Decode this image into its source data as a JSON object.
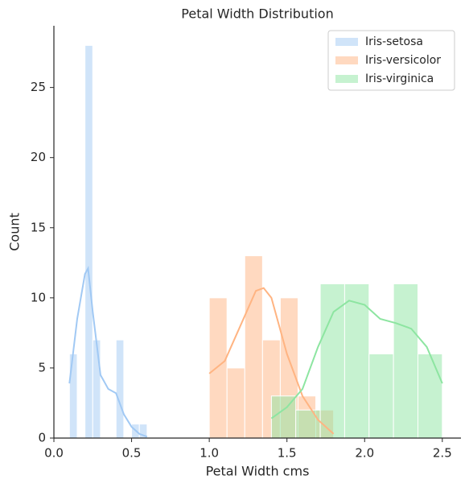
{
  "chart_data": {
    "type": "histogram",
    "title": "Petal Width Distribution",
    "x_label": "Petal Width cms",
    "y_label": "Count",
    "xlim": [
      0,
      2.62
    ],
    "ylim": [
      0,
      29.4
    ],
    "xticks": [
      {
        "value": 0,
        "label": "0.0"
      },
      0.5,
      {
        "value": 1,
        "label": "1.0"
      },
      1.5,
      {
        "value": 2,
        "label": "2.0"
      },
      2.5
    ],
    "yticks": [
      0,
      5,
      10,
      15,
      20,
      25
    ],
    "legend": "upper right",
    "grid": false,
    "series": [
      {
        "name": "Iris-setosa",
        "color": "#a1c9f4",
        "bins": [
          0.1,
          0.15,
          0.2,
          0.25,
          0.3,
          0.35,
          0.4,
          0.45,
          0.5,
          0.55,
          0.6
        ],
        "values": [
          6,
          0,
          28,
          7,
          0,
          0,
          7,
          0,
          1,
          1
        ],
        "kde": {
          "x": [
            0.1,
            0.15,
            0.2,
            0.22,
            0.25,
            0.3,
            0.35,
            0.4,
            0.45,
            0.5,
            0.55,
            0.6
          ],
          "y": [
            3.9,
            8.5,
            11.7,
            12.1,
            9,
            4.5,
            3.5,
            3.2,
            1.7,
            0.8,
            0.3,
            0.1
          ]
        }
      },
      {
        "name": "Iris-versicolor",
        "color": "#ffb482",
        "bins": [
          1.0,
          1.1143,
          1.2286,
          1.3429,
          1.4571,
          1.5714,
          1.6857,
          1.8
        ],
        "values": [
          10,
          5,
          13,
          7,
          10,
          3,
          2
        ],
        "kde": {
          "x": [
            1.0,
            1.1,
            1.2,
            1.3,
            1.35,
            1.4,
            1.5,
            1.6,
            1.7,
            1.8
          ],
          "y": [
            4.6,
            5.5,
            8,
            10.5,
            10.7,
            10,
            6,
            3,
            1.3,
            0.3
          ]
        }
      },
      {
        "name": "Iris-virginica",
        "color": "#8de5a1",
        "bins": [
          1.4,
          1.5571,
          1.7143,
          1.8714,
          2.0286,
          2.1857,
          2.3429,
          2.5
        ],
        "values": [
          3,
          2,
          11,
          11,
          6,
          11,
          6
        ],
        "kde": {
          "x": [
            1.4,
            1.5,
            1.6,
            1.7,
            1.8,
            1.9,
            2.0,
            2.1,
            2.2,
            2.3,
            2.4,
            2.5
          ],
          "y": [
            1.4,
            2.2,
            3.5,
            6.5,
            9,
            9.8,
            9.5,
            8.5,
            8.2,
            7.8,
            6.5,
            3.9
          ]
        }
      }
    ]
  }
}
